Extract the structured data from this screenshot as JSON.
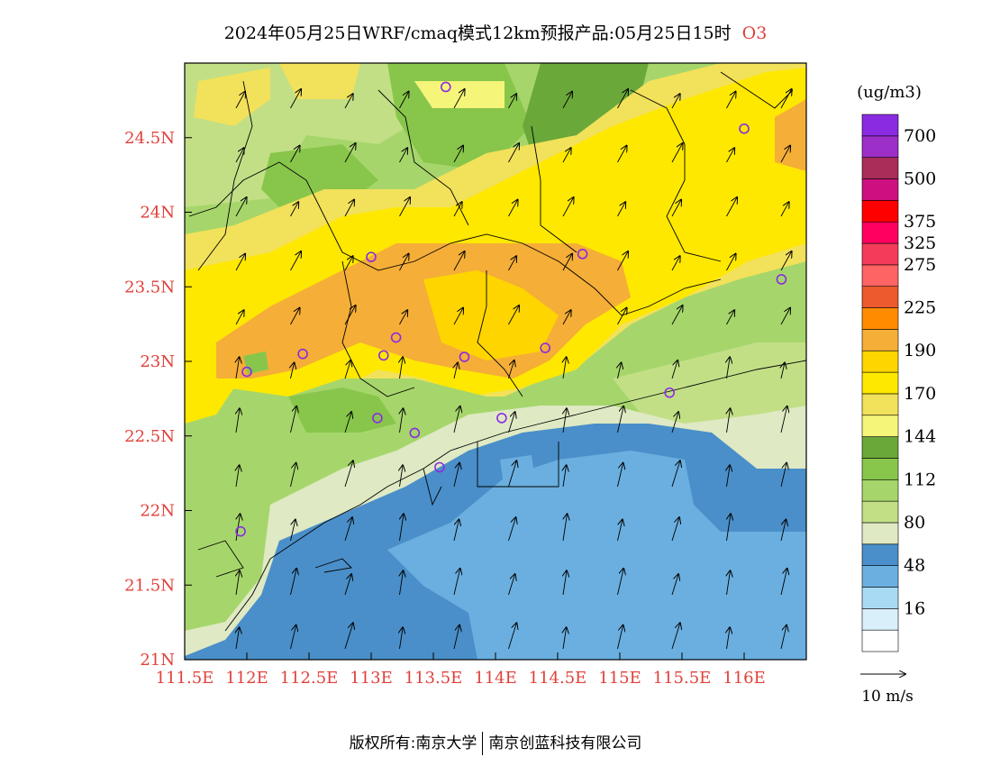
{
  "title": {
    "text": "2024年05月25日WRF/cmaq模式12km预报产品:05月25日15时",
    "variable": "O3"
  },
  "map": {
    "lon_range": [
      111.5,
      116.5
    ],
    "lat_range": [
      21.0,
      25.0
    ],
    "lon_ticks": [
      {
        "value": 111.5,
        "label": "111.5E"
      },
      {
        "value": 112.0,
        "label": "112E"
      },
      {
        "value": 112.5,
        "label": "112.5E"
      },
      {
        "value": 113.0,
        "label": "113E"
      },
      {
        "value": 113.5,
        "label": "113.5E"
      },
      {
        "value": 114.0,
        "label": "114E"
      },
      {
        "value": 114.5,
        "label": "114.5E"
      },
      {
        "value": 115.0,
        "label": "115E"
      },
      {
        "value": 115.5,
        "label": "115.5E"
      },
      {
        "value": 116.0,
        "label": "116E"
      }
    ],
    "lat_ticks": [
      {
        "value": 21.0,
        "label": "21N"
      },
      {
        "value": 21.5,
        "label": "21.5N"
      },
      {
        "value": 22.0,
        "label": "22N"
      },
      {
        "value": 22.5,
        "label": "22.5N"
      },
      {
        "value": 23.0,
        "label": "23N"
      },
      {
        "value": 23.5,
        "label": "23.5N"
      },
      {
        "value": 24.0,
        "label": "24N"
      },
      {
        "value": 24.5,
        "label": "24.5N"
      }
    ],
    "stations": [
      {
        "lon": 113.6,
        "lat": 24.84
      },
      {
        "lon": 116.0,
        "lat": 24.56
      },
      {
        "lon": 113.0,
        "lat": 23.7
      },
      {
        "lon": 114.7,
        "lat": 23.72
      },
      {
        "lon": 116.3,
        "lat": 23.55
      },
      {
        "lon": 113.2,
        "lat": 23.16
      },
      {
        "lon": 112.45,
        "lat": 23.05
      },
      {
        "lon": 113.1,
        "lat": 23.04
      },
      {
        "lon": 113.75,
        "lat": 23.03
      },
      {
        "lon": 114.4,
        "lat": 23.09
      },
      {
        "lon": 112.0,
        "lat": 22.93
      },
      {
        "lon": 115.4,
        "lat": 22.79
      },
      {
        "lon": 113.05,
        "lat": 22.62
      },
      {
        "lon": 113.35,
        "lat": 22.52
      },
      {
        "lon": 114.05,
        "lat": 22.62
      },
      {
        "lon": 113.55,
        "lat": 22.29
      },
      {
        "lon": 111.95,
        "lat": 21.86
      }
    ]
  },
  "legend": {
    "unit": "(ug/m3)",
    "colors": [
      "#ffffff",
      "#d9f0fb",
      "#a8daf4",
      "#6aafe0",
      "#4a8fc9",
      "#dfe9c3",
      "#c2df86",
      "#a6d66b",
      "#88c64b",
      "#6aa83a",
      "#f5f579",
      "#f2e15a",
      "#ffe800",
      "#ffd500",
      "#f5ae37",
      "#ff8c00",
      "#ec5a2d",
      "#ff6464",
      "#f43c5a",
      "#ff0060",
      "#ff0000",
      "#cc1080",
      "#a82d58",
      "#9b2fc7",
      "#8a2be2"
    ],
    "labels": [
      {
        "after_index": 1,
        "text": "16"
      },
      {
        "after_index": 3,
        "text": "48"
      },
      {
        "after_index": 5,
        "text": "80"
      },
      {
        "after_index": 7,
        "text": "112"
      },
      {
        "after_index": 9,
        "text": "144"
      },
      {
        "after_index": 11,
        "text": "170"
      },
      {
        "after_index": 13,
        "text": "190"
      },
      {
        "after_index": 15,
        "text": "225"
      },
      {
        "after_index": 17,
        "text": "275"
      },
      {
        "after_index": 18,
        "text": "325"
      },
      {
        "after_index": 19,
        "text": "375"
      },
      {
        "after_index": 21,
        "text": "500"
      },
      {
        "after_index": 23,
        "text": "700"
      }
    ],
    "wind_scale_label": "10 m/s"
  },
  "footer": {
    "left": "版权所有:南京大学",
    "right": "南京创蓝科技有限公司"
  }
}
